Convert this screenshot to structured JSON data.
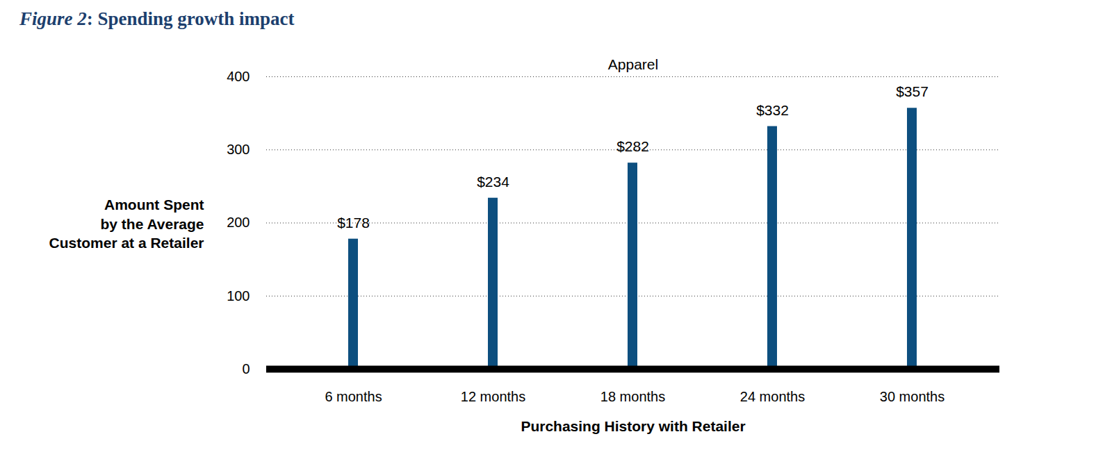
{
  "chart_data": {
    "type": "bar",
    "title": "Figure 2: Spending growth impact",
    "subtitle": "Apparel",
    "categories": [
      "6 months",
      "12 months",
      "18 months",
      "24 months",
      "30 months"
    ],
    "values": [
      178,
      234,
      282,
      332,
      357
    ],
    "value_labels": [
      "$178",
      "$234",
      "$282",
      "$332",
      "$357"
    ],
    "data_labels": true,
    "color": "#0d4f7f",
    "xlabel": "Purchasing History with Retailer",
    "ylabel": "Amount Spent\nby the Average\nCustomer at a Retailer",
    "ylim": [
      0,
      400
    ],
    "yticks": [
      0,
      100,
      200,
      300,
      400
    ],
    "grid": true
  }
}
